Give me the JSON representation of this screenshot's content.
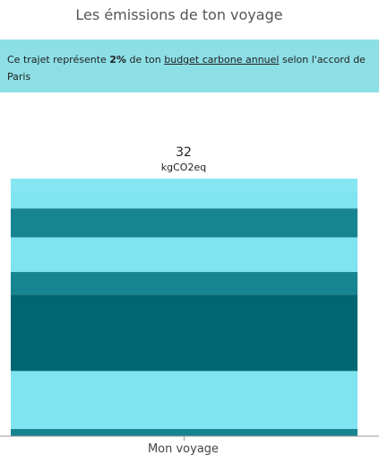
{
  "header": {
    "title": "Les émissions de ton voyage"
  },
  "banner": {
    "before": "Ce trajet représente ",
    "percent": "2%",
    "middle": " de ton ",
    "link": "budget carbone annuel",
    "after": " selon l'accord de Paris"
  },
  "chart_data": {
    "type": "stacked_bar",
    "categories": [
      "Mon voyage"
    ],
    "total": 32,
    "total_unit": "kgCO2eq",
    "series": [
      {
        "color": "#168591",
        "values": [
          0.9
        ]
      },
      {
        "color": "#7fe3f0",
        "values": [
          7.2
        ]
      },
      {
        "color": "#006671",
        "values": [
          9.5
        ]
      },
      {
        "color": "#168591",
        "values": [
          2.8
        ]
      },
      {
        "color": "#7fe3f0",
        "values": [
          4.3
        ]
      },
      {
        "color": "#168591",
        "values": [
          3.6
        ]
      },
      {
        "color": "#7fe3f0",
        "values": [
          2.1
        ]
      },
      {
        "color": "#86e7f2",
        "values": [
          1.6
        ]
      }
    ]
  }
}
